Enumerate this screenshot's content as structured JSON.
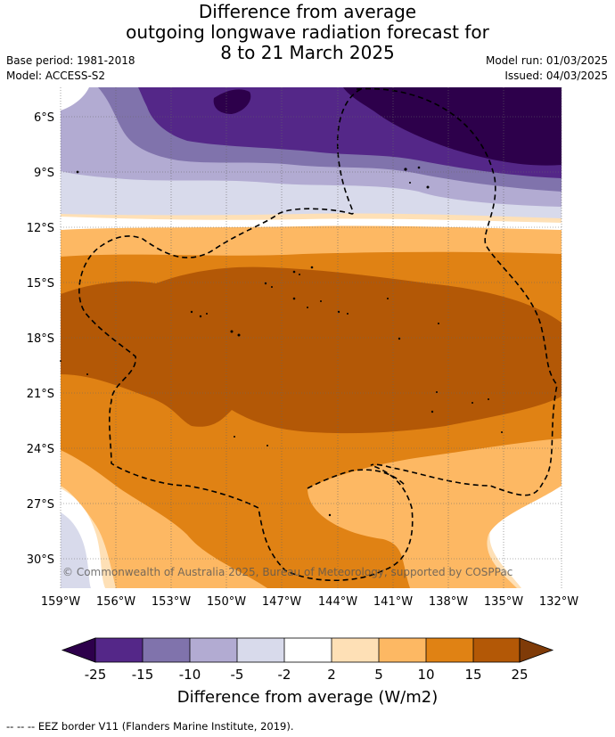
{
  "title": {
    "line1": "Difference from average",
    "line2": "outgoing longwave radiation forecast for",
    "line3": "8 to 21 March 2025"
  },
  "meta": {
    "base_period": "Base period: 1981-2018",
    "model": "Model: ACCESS-S2",
    "model_run": "Model run: 01/03/2025",
    "issued": "Issued: 04/03/2025"
  },
  "map": {
    "lat_labels": [
      "6°S",
      "9°S",
      "12°S",
      "15°S",
      "18°S",
      "21°S",
      "24°S",
      "27°S",
      "30°S"
    ],
    "lon_labels": [
      "159°W",
      "156°W",
      "153°W",
      "150°W",
      "147°W",
      "144°W",
      "141°W",
      "138°W",
      "135°W",
      "132°W"
    ],
    "copyright": "© Commonwealth of Australia 2025, Bureau of Meteorology, supported by COSPPac"
  },
  "colorbar": {
    "ticks": [
      "-25",
      "-15",
      "-10",
      "-5",
      "-2",
      "2",
      "5",
      "10",
      "15",
      "25"
    ],
    "label": "Difference from average (W/m2)",
    "colors": [
      "#2d004b",
      "#542788",
      "#8073ac",
      "#b2abd2",
      "#d8daeb",
      "#ffffff",
      "#fee0b6",
      "#fdb863",
      "#e08214",
      "#b35806",
      "#7f3b08"
    ]
  },
  "legend_note": "--  --  -- EEZ border V11 (Flanders Marine Institute, 2019)."
}
